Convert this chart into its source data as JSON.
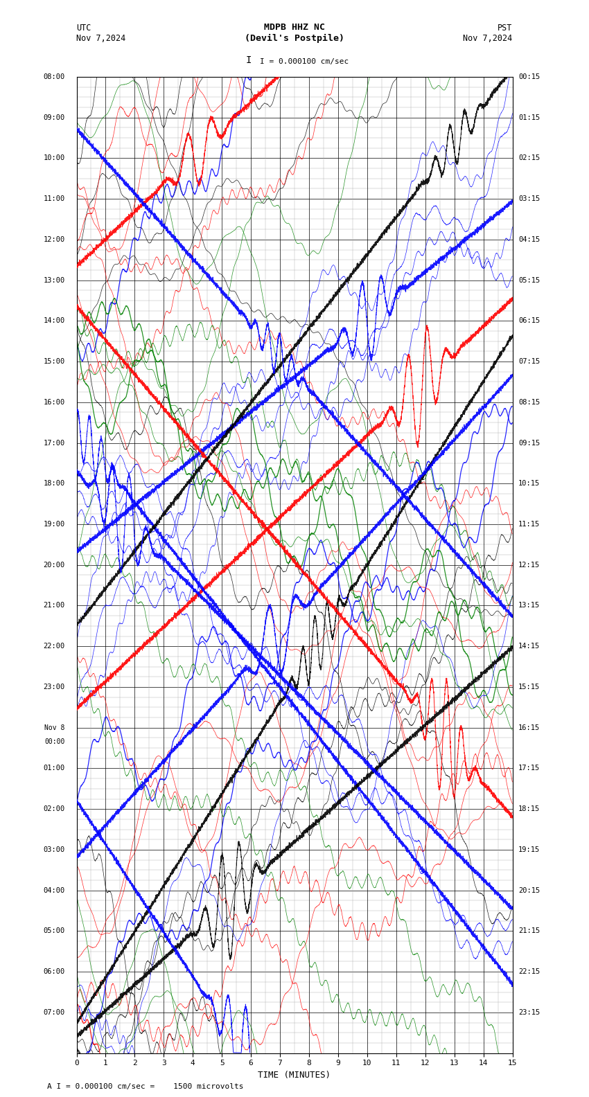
{
  "title_center": "MDPB HHZ NC\n(Devil's Postpile)",
  "title_left": "UTC\nNov 7,2024",
  "title_right": "PST\nNov 7,2024",
  "scale_text": "I = 0.000100 cm/sec",
  "footer_text": "A I = 0.000100 cm/sec =    1500 microvolts",
  "xlabel": "TIME (MINUTES)",
  "xlim": [
    0,
    15
  ],
  "xticks": [
    0,
    1,
    2,
    3,
    4,
    5,
    6,
    7,
    8,
    9,
    10,
    11,
    12,
    13,
    14,
    15
  ],
  "left_times": [
    "08:00",
    "09:00",
    "10:00",
    "11:00",
    "12:00",
    "13:00",
    "14:00",
    "15:00",
    "16:00",
    "17:00",
    "18:00",
    "19:00",
    "20:00",
    "21:00",
    "22:00",
    "23:00",
    "Nov 8\n00:00",
    "01:00",
    "02:00",
    "03:00",
    "04:00",
    "05:00",
    "06:00",
    "07:00"
  ],
  "right_times": [
    "00:15",
    "01:15",
    "02:15",
    "03:15",
    "04:15",
    "05:15",
    "06:15",
    "07:15",
    "08:15",
    "09:15",
    "10:15",
    "11:15",
    "12:15",
    "13:15",
    "14:15",
    "15:15",
    "16:15",
    "17:15",
    "18:15",
    "19:15",
    "20:15",
    "21:15",
    "22:15",
    "23:15"
  ],
  "n_rows": 24,
  "bg_color": "#ffffff",
  "grid_color": "#aaaaaa",
  "colors": [
    "black",
    "red",
    "blue",
    "green"
  ],
  "seed": 42
}
